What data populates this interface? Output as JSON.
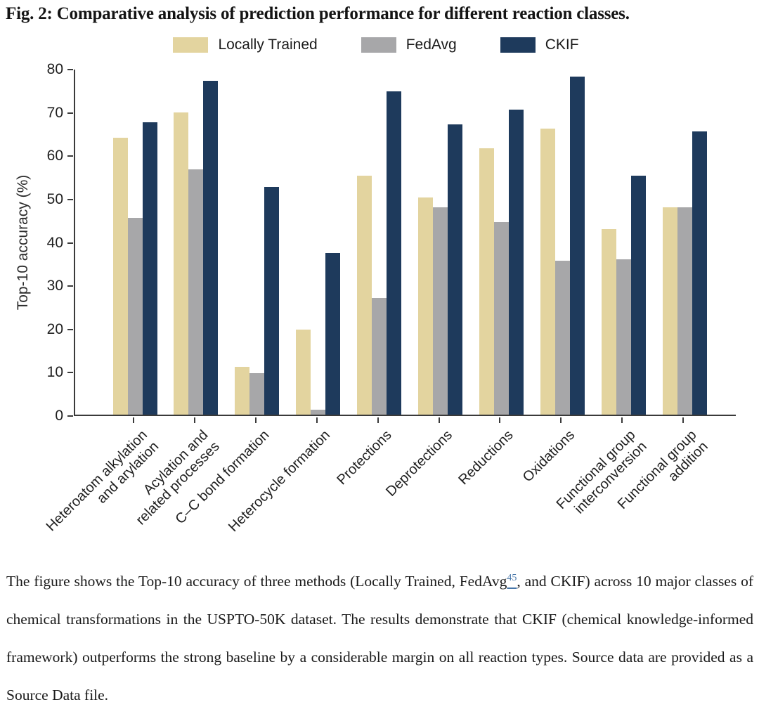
{
  "figure": {
    "title": "Fig. 2: Comparative analysis of prediction performance for different reaction classes."
  },
  "chart_data": {
    "type": "bar",
    "title": "",
    "xlabel": "",
    "ylabel": "Top-10 accuracy (%)",
    "ylim": [
      0,
      80
    ],
    "yticks": [
      0,
      10,
      20,
      30,
      40,
      50,
      60,
      70,
      80
    ],
    "grid": false,
    "legend_position": "top-center",
    "categories": [
      "Heteroatom alkylation\nand arylation",
      "Acylation and\nrelated processes",
      "C–C bond formation",
      "Heterocycle formation",
      "Protections",
      "Deprotections",
      "Reductions",
      "Oxidations",
      "Functional group\ninterconversion",
      "Functional group\naddition"
    ],
    "series": [
      {
        "name": "Locally Trained",
        "color": "#e3d49f",
        "values": [
          63.9,
          69.8,
          11.0,
          19.7,
          55.2,
          50.2,
          61.5,
          66.0,
          42.9,
          47.8
        ]
      },
      {
        "name": "FedAvg",
        "color": "#a7a7a9",
        "values": [
          45.5,
          56.6,
          9.5,
          1.1,
          26.9,
          47.9,
          44.4,
          35.5,
          35.8,
          47.8
        ]
      },
      {
        "name": "CKIF",
        "color": "#1e3a5c",
        "values": [
          67.5,
          77.1,
          52.6,
          37.4,
          74.6,
          67.1,
          70.4,
          78.0,
          55.2,
          65.4
        ]
      }
    ]
  },
  "caption": {
    "part1": "The figure shows the Top-10 accuracy of three methods (Locally Trained, FedAvg",
    "ref": "45",
    "part2": ", and CKIF) across 10 major classes of chemical transformations in the USPTO-50K dataset. The results demonstrate that CKIF (chemical knowledge-informed framework) outperforms the strong baseline by a considerable margin on all reaction types. Source data are provided as a Source Data file."
  },
  "colors": {
    "axis": "#3a3a3a",
    "link": "#4676a9"
  }
}
